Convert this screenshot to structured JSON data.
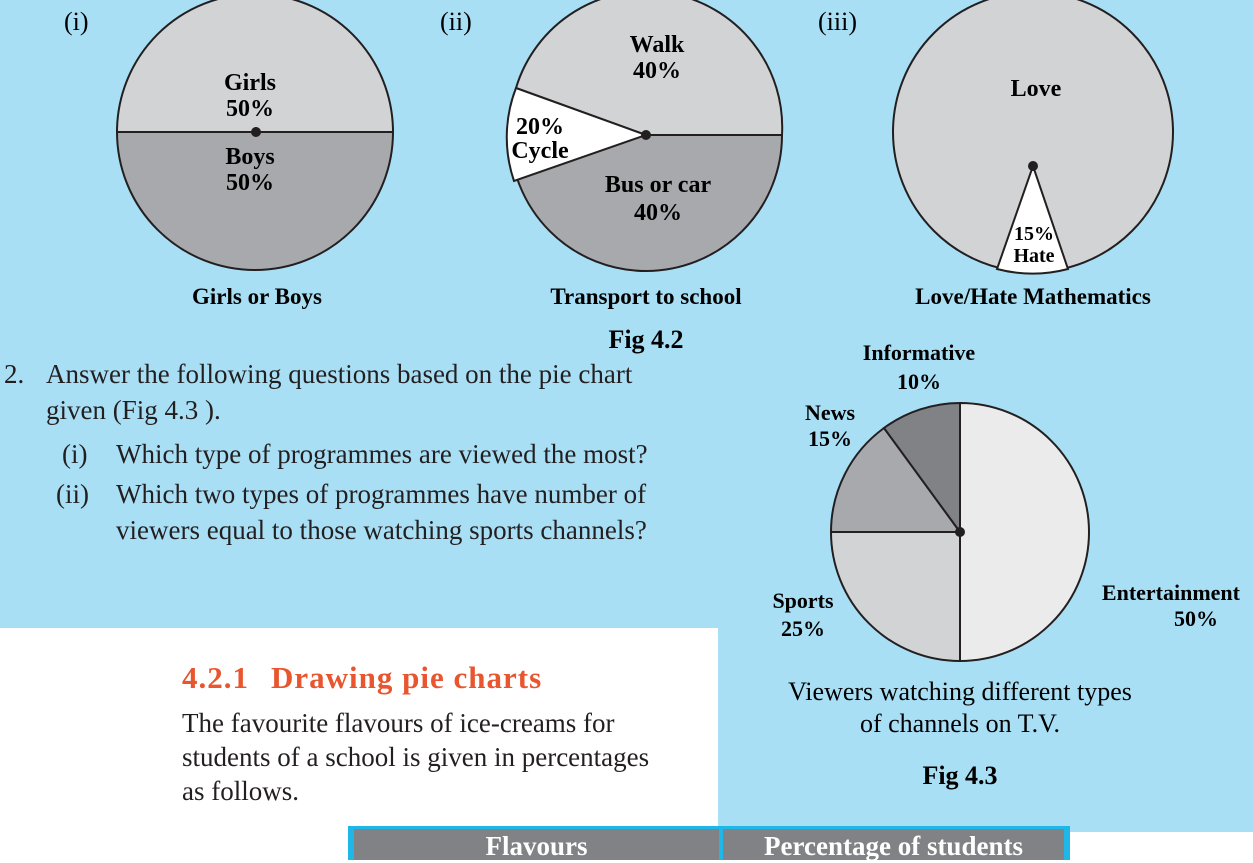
{
  "colors": {
    "bg_blue": "#a8dff5",
    "slice_light": "#d1d3d4",
    "slice_mid": "#a7a9ac",
    "slice_dark": "#808285",
    "accent_orange": "#e8552f",
    "table_blue": "#1fb6e8"
  },
  "fig42": {
    "label": "Fig 4.2",
    "charts": [
      {
        "roman": "(i)",
        "caption": "Girls or Boys",
        "slices": [
          {
            "label": "Girls",
            "pct": "50%"
          },
          {
            "label": "Boys",
            "pct": "50%"
          }
        ]
      },
      {
        "roman": "(ii)",
        "caption": "Transport to school",
        "slices": [
          {
            "label": "Walk",
            "pct": "40%"
          },
          {
            "label": "Cycle",
            "pct": "20%"
          },
          {
            "label": "Bus or car",
            "pct": "40%"
          }
        ]
      },
      {
        "roman": "(iii)",
        "caption": "Love/Hate Mathematics",
        "slices": [
          {
            "label": "Love",
            "pct": ""
          },
          {
            "label": "Hate",
            "pct": "15%"
          }
        ]
      }
    ]
  },
  "question": {
    "number": "2.",
    "line1": "Answer the following questions based on the pie chart",
    "line2": "given (Fig 4.3 ).",
    "parts": [
      {
        "roman": "(i)",
        "lines": [
          "Which type of programmes are viewed the most?"
        ]
      },
      {
        "roman": "(ii)",
        "lines": [
          "Which two types of programmes have number of",
          "viewers equal to those watching sports channels?"
        ]
      }
    ]
  },
  "fig43": {
    "label": "Fig 4.3",
    "caption_line1": "Viewers watching different types",
    "caption_line2": "of channels on T.V."
  },
  "section": {
    "number": "4.2.1",
    "title": "Drawing pie charts",
    "para_lines": [
      "The favourite flavours of ice-creams for",
      "students of a school is given in percentages",
      "as follows."
    ]
  },
  "table": {
    "headers": [
      "Flavours",
      "Percentage of students"
    ]
  },
  "chart_data": [
    {
      "type": "pie",
      "title": "Girls or Boys",
      "series": [
        {
          "values": [
            50,
            50
          ]
        }
      ],
      "categories": [
        "Girls",
        "Boys"
      ]
    },
    {
      "type": "pie",
      "title": "Transport to school",
      "series": [
        {
          "values": [
            40,
            20,
            40
          ]
        }
      ],
      "categories": [
        "Walk",
        "Cycle",
        "Bus or car"
      ]
    },
    {
      "type": "pie",
      "title": "Love/Hate Mathematics",
      "series": [
        {
          "values": [
            85,
            15
          ]
        }
      ],
      "categories": [
        "Love",
        "Hate"
      ]
    },
    {
      "type": "pie",
      "title": "Viewers watching different types of channels on T.V.",
      "categories": [
        "Entertainment",
        "Sports",
        "News",
        "Informative"
      ],
      "values": [
        50,
        25,
        15,
        10
      ],
      "labels": [
        {
          "label": "Entertainment",
          "pct": "50%"
        },
        {
          "label": "Sports",
          "pct": "25%"
        },
        {
          "label": "News",
          "pct": "15%"
        },
        {
          "label": "Informative",
          "pct": "10%"
        }
      ]
    }
  ]
}
